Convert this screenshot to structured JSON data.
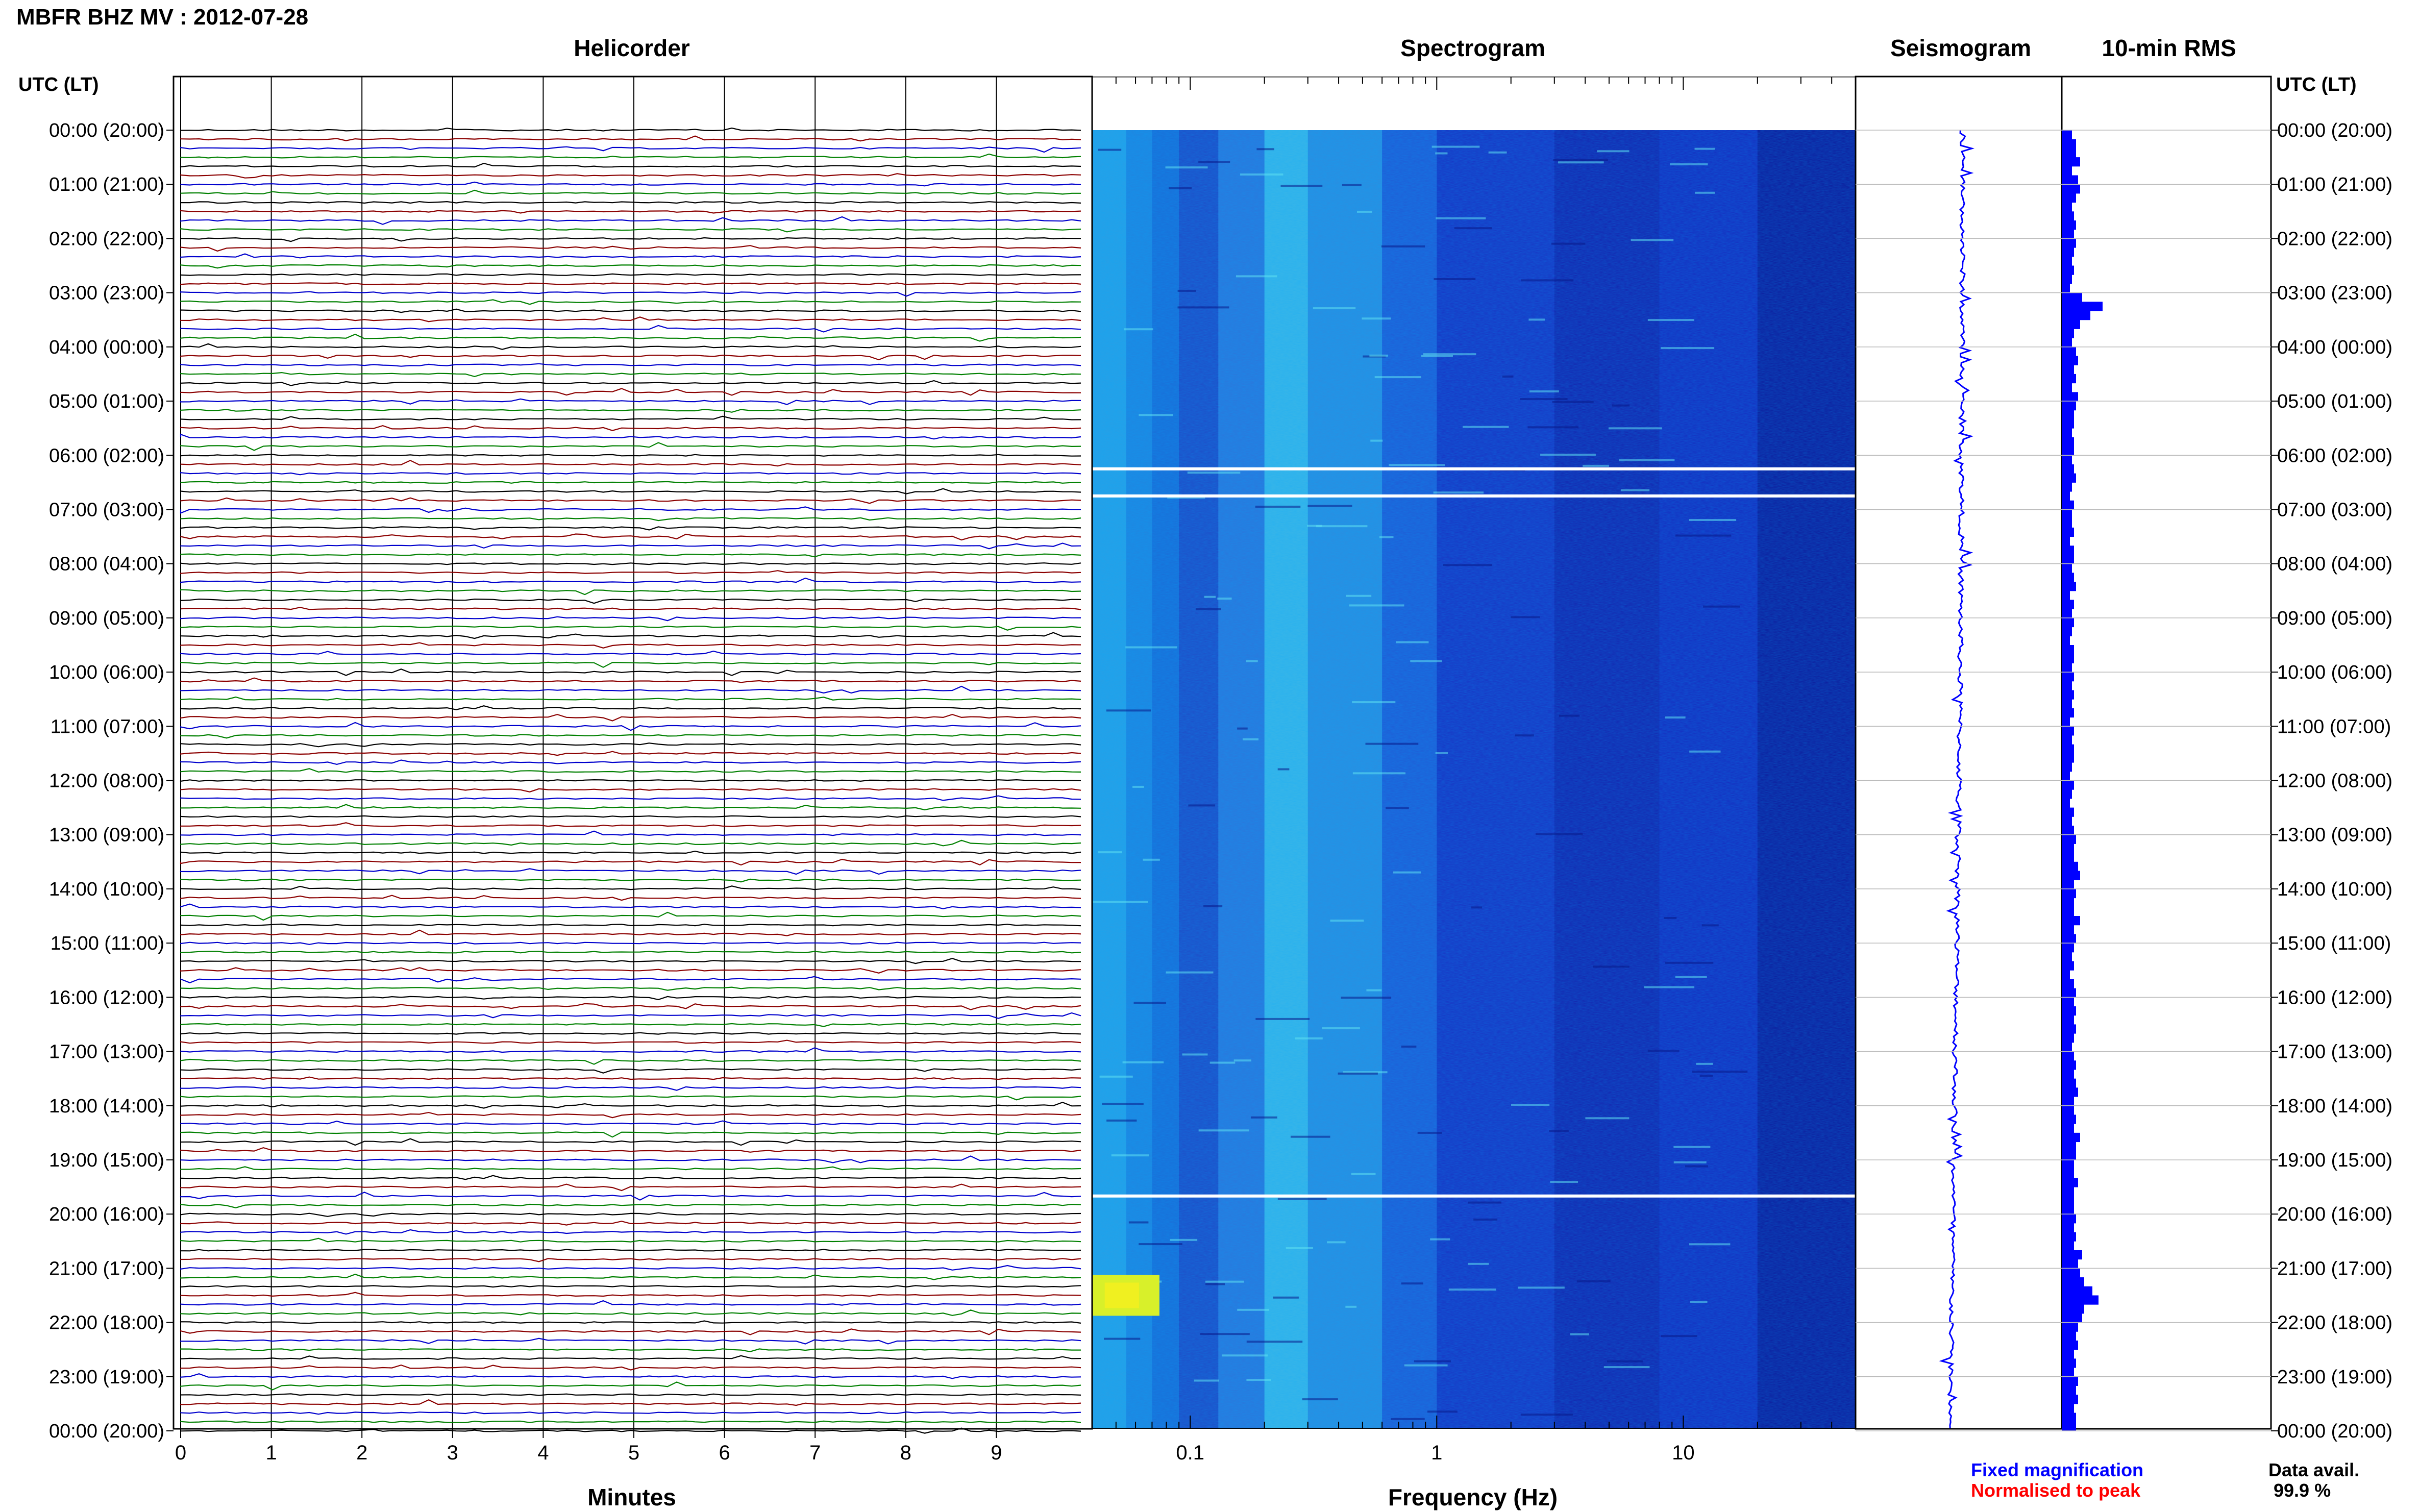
{
  "header": {
    "title": "MBFR BHZ MV : 2012-07-28"
  },
  "panels": {
    "helicorder_title": "Helicorder",
    "spectrogram_title": "Spectrogram",
    "seismogram_title": "Seismogram",
    "rms_title": "10-min RMS"
  },
  "axes": {
    "left_time_label": "UTC (LT)",
    "right_time_label": "UTC (LT)",
    "helicorder_xlabel": "Minutes",
    "spectrogram_xlabel": "Frequency (Hz)",
    "spectrogram_xscale": "log",
    "time_ticks": [
      "00:00 (20:00)",
      "01:00 (21:00)",
      "02:00 (22:00)",
      "03:00 (23:00)",
      "04:00 (00:00)",
      "05:00 (01:00)",
      "06:00 (02:00)",
      "07:00 (03:00)",
      "08:00 (04:00)",
      "09:00 (05:00)",
      "10:00 (06:00)",
      "11:00 (07:00)",
      "12:00 (08:00)",
      "13:00 (09:00)",
      "14:00 (10:00)",
      "15:00 (11:00)",
      "16:00 (12:00)",
      "17:00 (13:00)",
      "18:00 (14:00)",
      "19:00 (15:00)",
      "20:00 (16:00)",
      "21:00 (17:00)",
      "22:00 (18:00)",
      "23:00 (19:00)",
      "00:00 (20:00)"
    ],
    "minute_ticks": [
      "0",
      "1",
      "2",
      "3",
      "4",
      "5",
      "6",
      "7",
      "8",
      "9"
    ],
    "frequency_ticks": [
      "0.1",
      "1",
      "10"
    ]
  },
  "legend": {
    "fixed": "Fixed magnification",
    "normalised": "Normalised to peak",
    "fixed_color": "#0000ff",
    "normalised_color": "#ff0000"
  },
  "availability": {
    "label": "Data avail.",
    "value": "99.9 %"
  },
  "colors": {
    "trace_cycle": [
      "#000000",
      "#8b0000",
      "#0000cd",
      "#008000"
    ],
    "spectrogram_low": "#00008b",
    "spectrogram_high": "#ffff00",
    "rms_bar": "#0000ff"
  },
  "chart_data": {
    "type": "heatmap",
    "title": "MBFR BHZ MV : 2012-07-28",
    "helicorder": {
      "lines_per_hour": 6,
      "minutes_per_line": 10,
      "hours": 24
    },
    "spectrogram": {
      "freq_range_hz": [
        0.04,
        50
      ],
      "gap_times_utc": [
        "06:15",
        "06:45",
        "19:40"
      ],
      "peak_event": "21:30 UTC near 0.05 Hz"
    },
    "rms_10min": {
      "unit": "relative",
      "values": [
        0.25,
        0.35,
        0.35,
        0.45,
        0.25,
        0.4,
        0.45,
        0.35,
        0.25,
        0.3,
        0.35,
        0.3,
        0.35,
        0.3,
        0.25,
        0.3,
        0.25,
        0.2,
        0.5,
        1.0,
        0.7,
        0.45,
        0.3,
        0.25,
        0.35,
        0.4,
        0.3,
        0.35,
        0.25,
        0.4,
        0.35,
        0.3,
        0.3,
        0.25,
        0.3,
        0.3,
        0.25,
        0.3,
        0.35,
        0.25,
        0.2,
        0.3,
        0.25,
        0.25,
        0.3,
        0.2,
        0.3,
        0.3,
        0.25,
        0.3,
        0.35,
        0.2,
        0.3,
        0.25,
        0.3,
        0.25,
        0.2,
        0.3,
        0.3,
        0.25,
        0.3,
        0.25,
        0.3,
        0.25,
        0.3,
        0.2,
        0.3,
        0.25,
        0.3,
        0.3,
        0.25,
        0.2,
        0.3,
        0.25,
        0.2,
        0.3,
        0.25,
        0.3,
        0.35,
        0.3,
        0.3,
        0.4,
        0.45,
        0.3,
        0.35,
        0.3,
        0.3,
        0.45,
        0.3,
        0.35,
        0.3,
        0.25,
        0.3,
        0.2,
        0.3,
        0.35,
        0.3,
        0.35,
        0.3,
        0.35,
        0.3,
        0.25,
        0.3,
        0.35,
        0.3,
        0.35,
        0.4,
        0.3,
        0.3,
        0.35,
        0.3,
        0.45,
        0.35,
        0.35,
        0.3,
        0.3,
        0.4,
        0.3,
        0.3,
        0.3,
        0.35,
        0.3,
        0.35,
        0.3,
        0.5,
        0.4,
        0.45,
        0.55,
        0.75,
        0.9,
        0.55,
        0.5,
        0.4,
        0.35,
        0.4,
        0.3,
        0.35,
        0.3,
        0.4,
        0.35,
        0.4,
        0.3,
        0.35,
        0.35
      ]
    }
  }
}
